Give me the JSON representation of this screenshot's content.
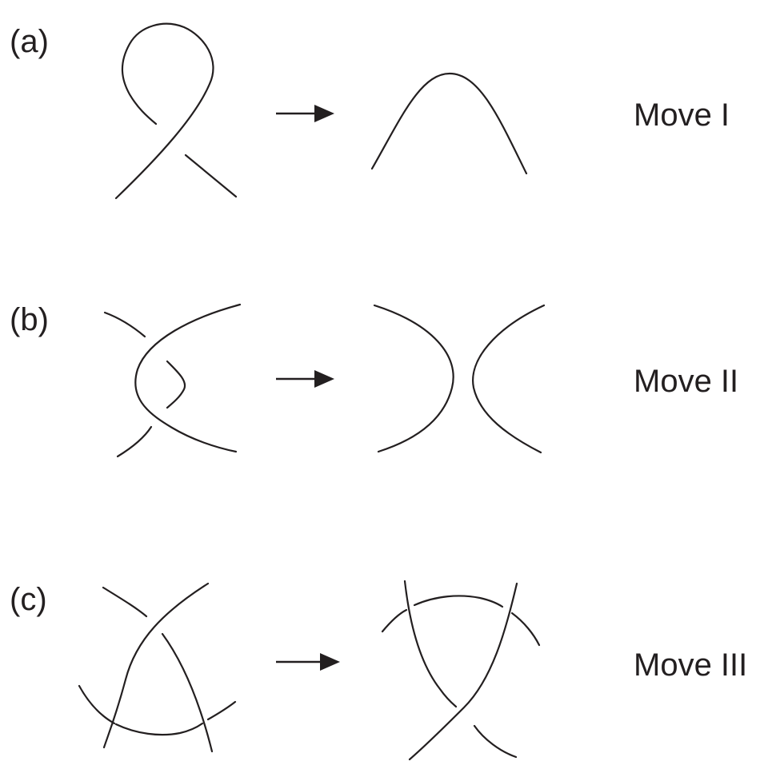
{
  "panels": [
    {
      "label": "(a)",
      "move": "Move I"
    },
    {
      "label": "(b)",
      "move": "Move II"
    },
    {
      "label": "(c)",
      "move": "Move III"
    }
  ],
  "colors": {
    "stroke": "#231f20",
    "background": "#ffffff"
  }
}
